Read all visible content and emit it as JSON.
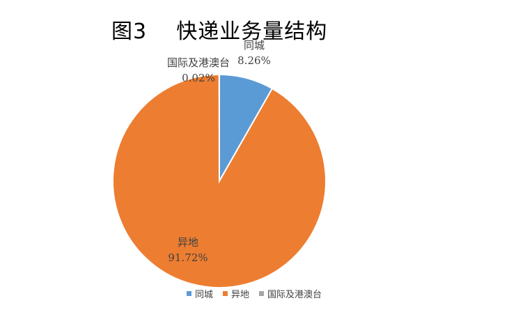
{
  "title": "图3    快递业务量结构",
  "chart_data": {
    "type": "pie",
    "title": "图3    快递业务量结构",
    "start_angle_deg": 0,
    "direction": "clockwise",
    "legend_position": "bottom",
    "slices": [
      {
        "label": "同城",
        "value": 8.26,
        "display": "8.26%",
        "color": "#5B9BD5"
      },
      {
        "label": "异地",
        "value": 91.72,
        "display": "91.72%",
        "color": "#ED7D31"
      },
      {
        "label": "国际及港澳台",
        "value": 0.02,
        "display": "0.02%",
        "color": "#A5A5A5"
      }
    ]
  }
}
